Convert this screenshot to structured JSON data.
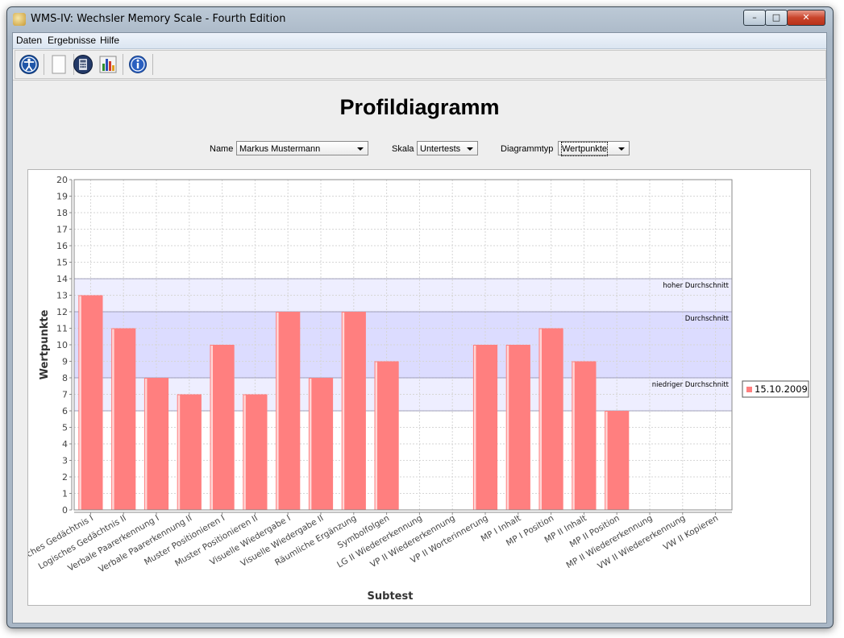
{
  "window": {
    "title": "WMS-IV: Wechsler Memory Scale - Fourth Edition",
    "minimize_glyph": "–",
    "maximize_glyph": "□",
    "close_glyph": "✕"
  },
  "menu": {
    "items": [
      "Daten",
      "Ergebnisse",
      "Hilfe"
    ]
  },
  "toolbar": {
    "icons": [
      "accessibility-icon",
      "blank-page-icon",
      "calculator-icon",
      "bar-chart-icon",
      "info-icon"
    ]
  },
  "page": {
    "title": "Profildiagramm",
    "name_label": "Name",
    "name_value": "Markus Mustermann",
    "scale_label": "Skala",
    "scale_value": "Untertests",
    "chart_type_label": "Diagrammtyp",
    "chart_type_value": "Wertpunkte"
  },
  "colors": {
    "bar": "#ff7f7f",
    "band_average": "#dcdcff",
    "band_outer": "#eeeeff"
  },
  "chart_data": {
    "type": "bar",
    "xlabel": "Subtest",
    "ylabel": "Wertpunkte",
    "ylim": [
      0,
      20
    ],
    "yticks": [
      0,
      1,
      2,
      3,
      4,
      5,
      6,
      7,
      8,
      9,
      10,
      11,
      12,
      13,
      14,
      15,
      16,
      17,
      18,
      19,
      20
    ],
    "grid": true,
    "legend_position": "right",
    "categories": [
      "Logisches Gedächtnis I",
      "Logisches Gedächtnis II",
      "Verbale Paarerkennung I",
      "Verbale Paarerkennung II",
      "Muster Positionieren I",
      "Muster Positionieren II",
      "Visuelle Wiedergabe I",
      "Visuelle Wiedergabe II",
      "Räumliche Ergänzung",
      "Symbolfolgen",
      "LG II Wiedererkennung",
      "VP II Wiedererkennung",
      "VP II Worterinnerung",
      "MP I Inhalt",
      "MP I Position",
      "MP II Inhalt",
      "MP II Position",
      "MP II Wiedererkennung",
      "VW II Wiedererkennung",
      "VW II Kopieren"
    ],
    "series": [
      {
        "name": "15.10.2009",
        "values": [
          13,
          11,
          8,
          7,
          10,
          7,
          12,
          8,
          12,
          9,
          null,
          null,
          10,
          10,
          11,
          9,
          6,
          null,
          null,
          null
        ]
      }
    ],
    "bands": [
      {
        "label": "hoher Durchschnitt",
        "from": 12,
        "to": 14
      },
      {
        "label": "Durchschnitt",
        "from": 8,
        "to": 12
      },
      {
        "label": "niedriger Durchschnitt",
        "from": 6,
        "to": 8
      }
    ]
  }
}
